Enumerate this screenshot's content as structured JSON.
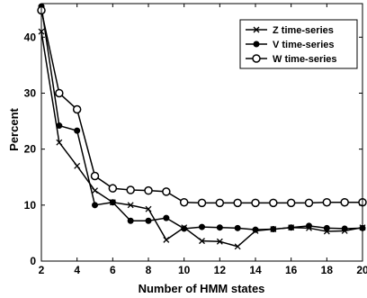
{
  "chart_data": {
    "type": "line",
    "title": "",
    "xlabel": "Number of HMM states",
    "ylabel": "Percent",
    "xlim": [
      2,
      20
    ],
    "ylim": [
      0,
      46
    ],
    "xticks": [
      2,
      4,
      6,
      8,
      10,
      12,
      14,
      16,
      18,
      20
    ],
    "yticks": [
      0,
      10,
      20,
      30,
      40
    ],
    "grid": false,
    "legend_position": "top-right",
    "x": [
      2,
      3,
      4,
      5,
      6,
      7,
      8,
      9,
      10,
      11,
      12,
      13,
      14,
      15,
      16,
      17,
      18,
      19,
      20
    ],
    "series": [
      {
        "name": "Z time-series",
        "marker": "x",
        "values": [
          41,
          21.2,
          17,
          12.6,
          10.5,
          10,
          9.3,
          3.8,
          6,
          3.6,
          3.5,
          2.6,
          5.4,
          5.7,
          6,
          5.9,
          5.3,
          5.4,
          6
        ]
      },
      {
        "name": "V time-series",
        "marker": "filled-circle",
        "values": [
          45.5,
          24.2,
          23.3,
          10,
          10.5,
          7.2,
          7.2,
          7.7,
          5.8,
          6.1,
          6,
          5.9,
          5.6,
          5.7,
          6,
          6.3,
          5.9,
          5.8,
          5.9
        ]
      },
      {
        "name": "W time-series",
        "marker": "open-circle",
        "values": [
          44.8,
          30,
          27.1,
          15.2,
          13,
          12.7,
          12.6,
          12.4,
          10.5,
          10.4,
          10.4,
          10.4,
          10.4,
          10.4,
          10.4,
          10.4,
          10.5,
          10.5,
          10.5
        ]
      }
    ]
  }
}
